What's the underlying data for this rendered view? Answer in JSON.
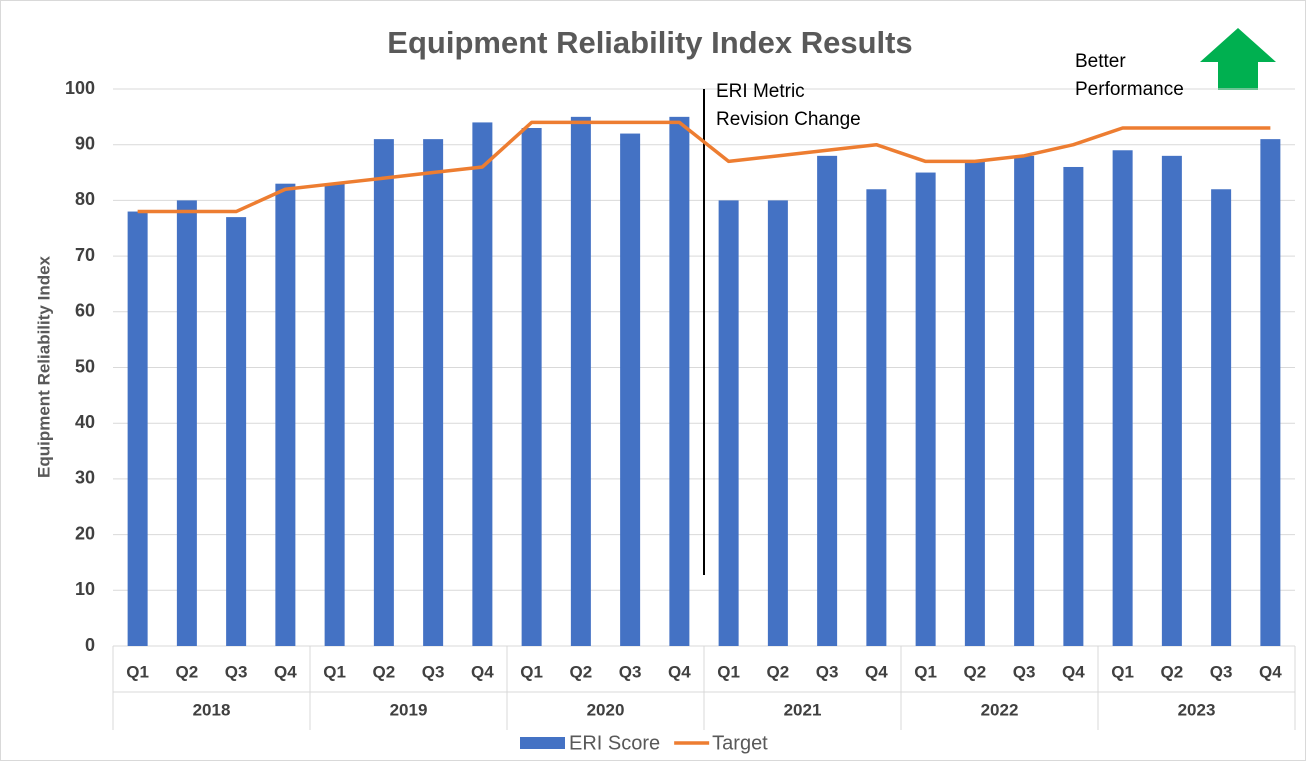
{
  "chart_data": {
    "type": "bar",
    "title": "Equipment Reliability Index Results",
    "y_label": "Equipment Reliability Index",
    "categories": [
      "Q1",
      "Q2",
      "Q3",
      "Q4",
      "Q1",
      "Q2",
      "Q3",
      "Q4",
      "Q1",
      "Q2",
      "Q3",
      "Q4",
      "Q1",
      "Q2",
      "Q3",
      "Q4",
      "Q1",
      "Q2",
      "Q3",
      "Q4",
      "Q1",
      "Q2",
      "Q3",
      "Q4"
    ],
    "groups": [
      "2018",
      "2019",
      "2020",
      "2021",
      "2022",
      "2023"
    ],
    "series": [
      {
        "name": "ERI Score",
        "type": "bar",
        "color": "#4472c4",
        "values": [
          78,
          80,
          77,
          83,
          83,
          91,
          91,
          94,
          93,
          95,
          92,
          95,
          80,
          80,
          88,
          82,
          85,
          87,
          88,
          86,
          89,
          88,
          82,
          91
        ]
      },
      {
        "name": "Target",
        "type": "line",
        "color": "#ed7d31",
        "values": [
          78,
          78,
          78,
          82,
          83,
          84,
          85,
          86,
          94,
          94,
          94,
          94,
          87,
          88,
          89,
          90,
          87,
          87,
          88,
          90,
          93,
          93,
          93,
          93
        ]
      }
    ],
    "annotations": [
      {
        "lines": [
          "ERI Metric",
          "Revision Change"
        ]
      },
      {
        "lines": [
          "Better",
          "Performance"
        ]
      }
    ],
    "ylim": [
      0,
      100
    ],
    "yticks": [
      0,
      10,
      20,
      30,
      40,
      50,
      60,
      70,
      80,
      90,
      100
    ],
    "grid": true
  }
}
